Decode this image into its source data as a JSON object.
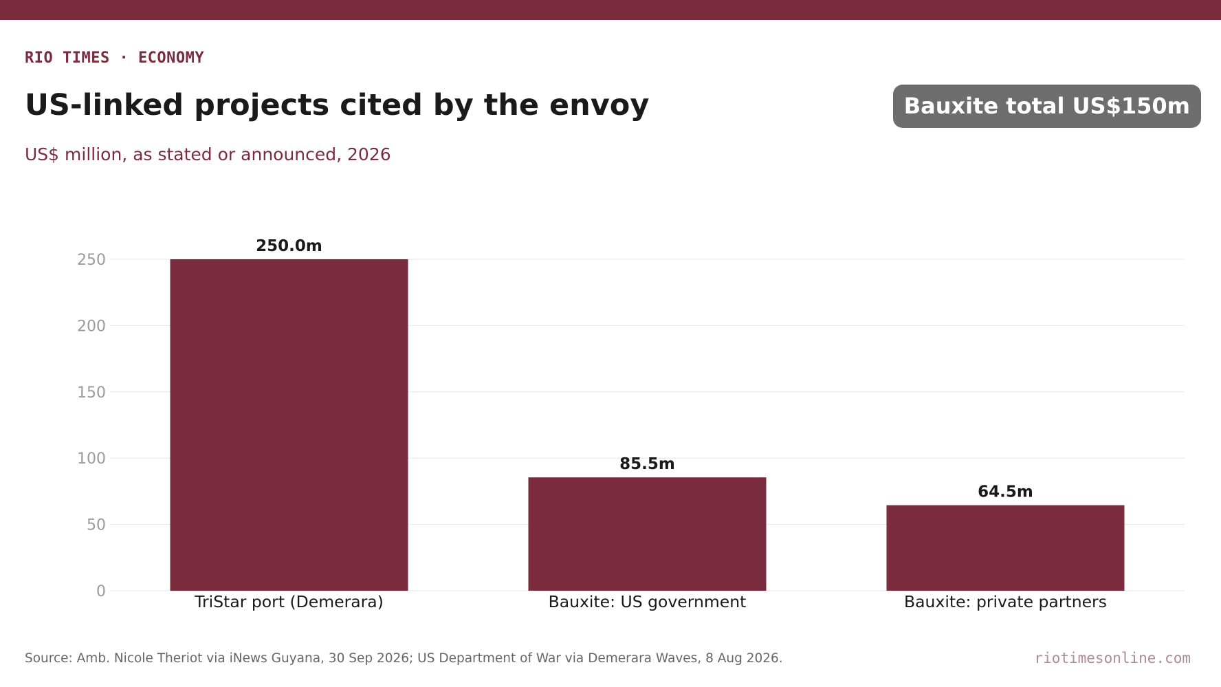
{
  "header": {
    "kicker": "RIO TIMES · ECONOMY",
    "title": "US-linked projects cited by the envoy",
    "subtitle": "US$ million, as stated or announced, 2026",
    "badge": "Bauxite total US$150m"
  },
  "footer": {
    "source": "Source: Amb. Nicole Theriot via iNews Guyana, 30 Sep 2026; US Department of War via Demerara Waves, 8 Aug 2026.",
    "site": "riotimesonline.com"
  },
  "colors": {
    "accent": "#7a2c3e",
    "bar": "#7a2c3e",
    "badge_bg": "#6d6d6d",
    "grid": "#e6e6e6",
    "tick_text": "#9a9aa2",
    "category_text": "#1a1a1a",
    "value_label_text": "#1a1a1a"
  },
  "chart_data": {
    "type": "bar",
    "title": "US-linked projects cited by the envoy",
    "subtitle": "US$ million, as stated or announced, 2026",
    "xlabel": "",
    "ylabel": "",
    "categories": [
      "TriStar port (Demerara)",
      "Bauxite: US government",
      "Bauxite: private partners"
    ],
    "values": [
      250.0,
      85.5,
      64.5
    ],
    "value_labels": [
      "250.0m",
      "85.5m",
      "64.5m"
    ],
    "ylim": [
      0,
      250
    ],
    "yticks": [
      0,
      50,
      100,
      150,
      200,
      250
    ],
    "grid": true,
    "legend": "none"
  }
}
